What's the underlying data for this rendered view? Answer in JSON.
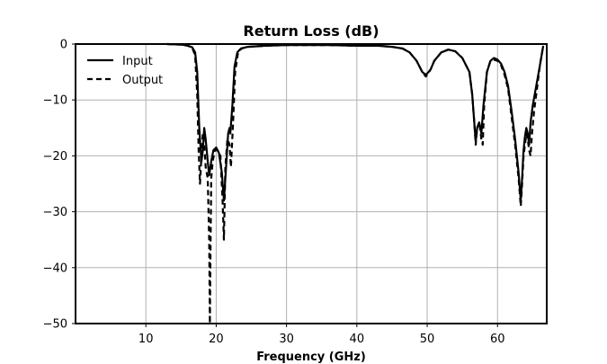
{
  "chart_data": {
    "type": "line",
    "title": "Return Loss (dB)",
    "xlabel": "Frequency (GHz)",
    "ylabel": "",
    "xlim": [
      0,
      67
    ],
    "ylim": [
      -50,
      0
    ],
    "xticks": [
      10,
      20,
      30,
      40,
      50,
      60
    ],
    "yticks": [
      0,
      -10,
      -20,
      -30,
      -40,
      -50
    ],
    "xtick_labels": [
      "10",
      "20",
      "30",
      "40",
      "50",
      "60"
    ],
    "ytick_labels": [
      "0",
      "−10",
      "−20",
      "−30",
      "−40",
      "−50"
    ],
    "grid": true,
    "legend_position": "top-left",
    "series": [
      {
        "name": "Input",
        "line_style": "solid",
        "color": "#000000",
        "x": [
          13,
          15,
          16,
          16.6,
          17,
          17.3,
          17.6,
          17.9,
          18.1,
          18.3,
          18.5,
          18.8,
          19.0,
          19.3,
          19.6,
          20.0,
          20.4,
          20.8,
          21.1,
          21.4,
          21.7,
          21.9,
          22.0,
          22.3,
          22.6,
          23.0,
          23.5,
          24.5,
          27,
          30,
          33,
          36,
          40,
          43,
          45,
          46.5,
          47.5,
          48.5,
          49.3,
          49.8,
          50.2,
          50.5,
          51,
          52,
          53,
          54,
          55,
          56,
          56.4,
          56.7,
          56.9,
          57.1,
          57.4,
          57.7,
          58.0,
          58.5,
          59,
          59.5,
          60,
          60.5,
          61,
          61.5,
          62,
          62.5,
          63,
          63.3,
          63.5,
          63.7,
          63.9,
          64.1,
          64.3,
          64.5,
          64.7,
          65.0,
          65.5,
          66,
          66.5
        ],
        "y": [
          0,
          -0.1,
          -0.3,
          -0.6,
          -1.5,
          -5,
          -15,
          -21,
          -19,
          -15,
          -17,
          -21,
          -23.5,
          -21,
          -19,
          -18.5,
          -19.5,
          -23,
          -28,
          -22,
          -16,
          -15,
          -16,
          -11,
          -4,
          -1.5,
          -0.8,
          -0.5,
          -0.3,
          -0.2,
          -0.2,
          -0.2,
          -0.3,
          -0.3,
          -0.5,
          -0.8,
          -1.5,
          -3,
          -5,
          -5.5,
          -5,
          -4.5,
          -3,
          -1.5,
          -1,
          -1.3,
          -2.5,
          -5,
          -9,
          -14,
          -17.5,
          -15,
          -14,
          -16,
          -11,
          -5,
          -3,
          -2.5,
          -2.8,
          -3.5,
          -5,
          -7.5,
          -12,
          -17,
          -23,
          -28,
          -24,
          -19,
          -16.5,
          -15,
          -16,
          -18,
          -14,
          -11,
          -7.5,
          -4,
          -0.3
        ]
      },
      {
        "name": "Output",
        "line_style": "dashed",
        "color": "#000000",
        "x": [
          13,
          15,
          16,
          16.6,
          17,
          17.3,
          17.5,
          17.7,
          17.9,
          18.1,
          18.3,
          18.5,
          18.8,
          19.0,
          19.1,
          19.2,
          19.3,
          19.5,
          19.8,
          20.2,
          20.6,
          20.9,
          21.1,
          21.3,
          21.6,
          21.9,
          22.1,
          22.4,
          22.7,
          23.1,
          23.6,
          24.5,
          27,
          30,
          33,
          36,
          40,
          43,
          45,
          46.5,
          47.5,
          48.5,
          49.3,
          49.8,
          50.2,
          50.5,
          51,
          52,
          53,
          54,
          55,
          56,
          56.4,
          56.7,
          56.9,
          57.1,
          57.4,
          57.7,
          57.9,
          58.1,
          58.5,
          59,
          59.5,
          60,
          60.5,
          61,
          61.5,
          62,
          62.5,
          63,
          63.3,
          63.5,
          63.7,
          63.9,
          64.1,
          64.3,
          64.5,
          64.7,
          64.9,
          65.2,
          65.6,
          66,
          66.5
        ],
        "y": [
          0,
          -0.1,
          -0.3,
          -0.7,
          -2,
          -9,
          -19,
          -25,
          -20,
          -16,
          -18,
          -22,
          -24,
          -35,
          -50,
          -35,
          -24,
          -21,
          -19,
          -19,
          -20,
          -28,
          -35,
          -22,
          -17,
          -18,
          -22,
          -14,
          -5,
          -1.5,
          -0.8,
          -0.5,
          -0.3,
          -0.2,
          -0.2,
          -0.2,
          -0.3,
          -0.3,
          -0.5,
          -0.8,
          -1.5,
          -3,
          -5,
          -5.8,
          -5.2,
          -4.5,
          -3,
          -1.5,
          -1,
          -1.3,
          -2.5,
          -5,
          -9,
          -14,
          -18,
          -15,
          -14,
          -17,
          -18,
          -11,
          -5,
          -3,
          -2.8,
          -3,
          -3.8,
          -5.5,
          -8,
          -13,
          -18,
          -24,
          -29,
          -25,
          -20,
          -18,
          -16,
          -17,
          -19,
          -20,
          -16,
          -12,
          -8,
          -4,
          -0.3
        ]
      }
    ]
  }
}
